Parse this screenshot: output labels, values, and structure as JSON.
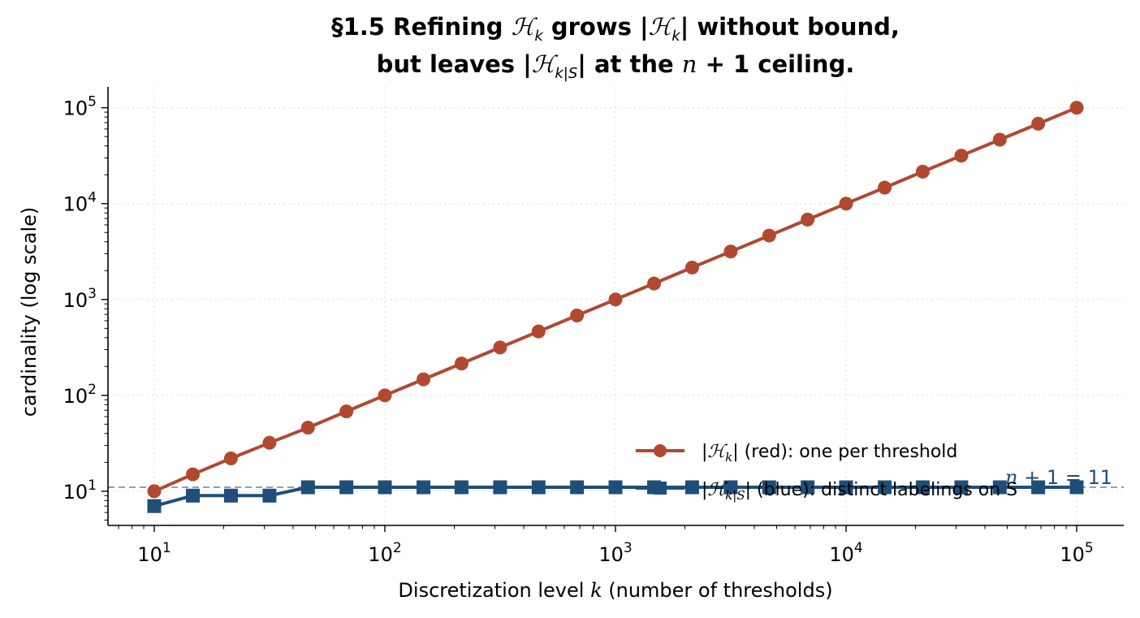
{
  "chart_data": {
    "type": "line",
    "title_line_1": {
      "prefix": "§1.5  Refining ",
      "m1": "ℋ",
      "m1_sub": "k",
      "middle": " grows |",
      "m2": "ℋ",
      "m2_sub": "k",
      "suffix": "| without bound,"
    },
    "title_line_2": {
      "prefix": "but leaves |",
      "m1": "ℋ",
      "m1_sub": "k|S",
      "middle": "| at the ",
      "m2": "n",
      "suffix": " + 1 ceiling."
    },
    "xlabel": {
      "text": "Discretization level ",
      "var": "k",
      "rest": "  (number of thresholds)"
    },
    "ylabel": "cardinality (log scale)",
    "xscale": "log",
    "yscale": "log",
    "xlim": [
      6.3,
      160000
    ],
    "ylim": [
      4.4,
      165000
    ],
    "x_ticks": [
      {
        "value": 10,
        "base": "10",
        "exp": "1"
      },
      {
        "value": 100,
        "base": "10",
        "exp": "2"
      },
      {
        "value": 1000,
        "base": "10",
        "exp": "3"
      },
      {
        "value": 10000,
        "base": "10",
        "exp": "4"
      },
      {
        "value": 100000,
        "base": "10",
        "exp": "5"
      }
    ],
    "y_ticks": [
      {
        "value": 10,
        "base": "10",
        "exp": "1"
      },
      {
        "value": 100,
        "base": "10",
        "exp": "2"
      },
      {
        "value": 1000,
        "base": "10",
        "exp": "3"
      },
      {
        "value": 10000,
        "base": "10",
        "exp": "4"
      },
      {
        "value": 100000,
        "base": "10",
        "exp": "5"
      }
    ],
    "grid": true,
    "legend_position": "lower-right",
    "series": [
      {
        "legend": {
          "prefix": "|",
          "m": "ℋ",
          "sub": "k",
          "suffix": "|  (red): one per threshold"
        },
        "color": "#b0492f",
        "marker": "circle",
        "x": [
          10,
          14.7,
          21.5,
          31.6,
          46.4,
          68.1,
          100,
          147,
          215,
          316,
          464,
          681,
          1000,
          1470,
          2150,
          3160,
          4640,
          6810,
          10000,
          14700,
          21500,
          31600,
          46400,
          68100,
          100000
        ],
        "y": [
          10,
          15,
          22,
          32,
          46,
          68,
          100,
          147,
          215,
          316,
          464,
          681,
          1000,
          1468,
          2154,
          3162,
          4642,
          6813,
          10000,
          14678,
          21544,
          31623,
          46416,
          68129,
          100000
        ]
      },
      {
        "legend": {
          "prefix": "|",
          "m": "ℋ",
          "sub": "k|S",
          "suffix": "|  (blue): distinct labelings on S"
        },
        "color": "#1f4e79",
        "marker": "square",
        "x": [
          10,
          14.7,
          21.5,
          31.6,
          46.4,
          68.1,
          100,
          147,
          215,
          316,
          464,
          681,
          1000,
          1470,
          2150,
          3160,
          4640,
          6810,
          10000,
          14700,
          21500,
          31600,
          46400,
          68100,
          100000
        ],
        "y": [
          7,
          9,
          9,
          9,
          11,
          11,
          11,
          11,
          11,
          11,
          11,
          11,
          11,
          11,
          11,
          11,
          11,
          11,
          11,
          11,
          11,
          11,
          11,
          11,
          11
        ]
      }
    ],
    "reference_line": {
      "y": 11,
      "color": "#8aa2b8",
      "label": {
        "n": "n",
        "plus": " + 1 = 11"
      },
      "label_color": "#1f4e79"
    }
  }
}
